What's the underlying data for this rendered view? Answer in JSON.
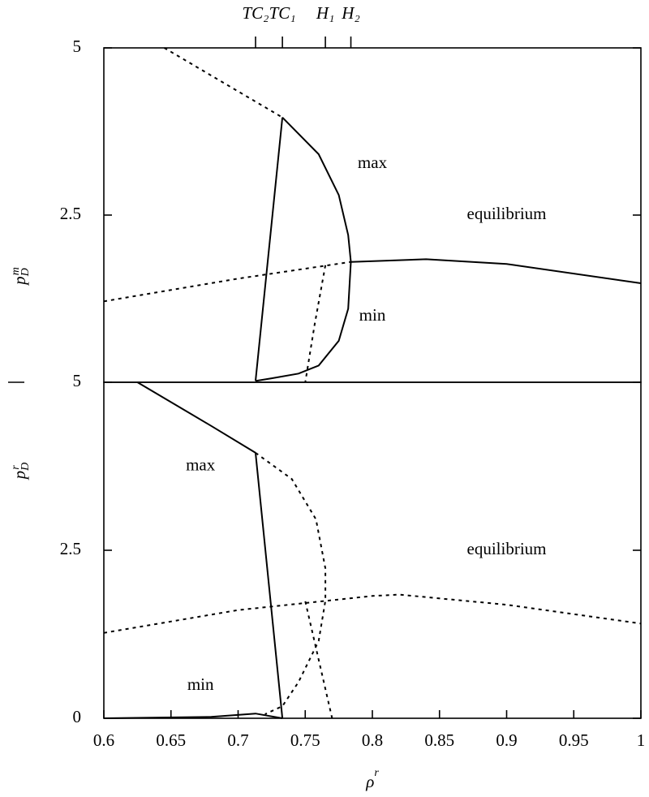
{
  "chart_data": [
    {
      "type": "line",
      "ylabel": {
        "base": "p",
        "sub": "D",
        "sup": "m"
      },
      "xlim": [
        0.6,
        1
      ],
      "ylim": [
        0,
        5
      ],
      "yticks": [
        2.5,
        5
      ],
      "x2ticks": [
        {
          "value": 0.713,
          "label": "TC₂"
        },
        {
          "value": 0.733,
          "label": "TC₁"
        },
        {
          "value": 0.765,
          "label": "H₁"
        },
        {
          "value": 0.784,
          "label": "H₂"
        }
      ],
      "annotations": [
        "max",
        "min",
        "equilibrium"
      ],
      "series": [
        {
          "color": "#000000",
          "dashed": true,
          "x": [
            0.645,
            0.733
          ],
          "values": [
            5,
            3.96
          ]
        },
        {
          "color": "#000000",
          "dashed": false,
          "x": [
            0.733,
            0.76,
            0.775,
            0.782,
            0.784,
            0.782,
            0.775,
            0.76,
            0.745,
            0.725,
            0.713
          ],
          "values": [
            3.96,
            3.41,
            2.8,
            2.2,
            1.8,
            1.1,
            0.62,
            0.25,
            0.13,
            0.06,
            0.02
          ]
        },
        {
          "color": "#000000",
          "dashed": false,
          "x": [
            0.713,
            0.733
          ],
          "values": [
            0.02,
            3.96
          ]
        },
        {
          "color": "#000000",
          "dashed": true,
          "x": [
            0.6,
            0.7,
            0.784
          ],
          "values": [
            1.21,
            1.55,
            1.8
          ]
        },
        {
          "color": "#000000",
          "dashed": false,
          "x": [
            0.784,
            0.84,
            0.9,
            1.0
          ],
          "values": [
            1.8,
            1.84,
            1.77,
            1.48
          ]
        },
        {
          "color": "#000000",
          "dashed": true,
          "x": [
            0.765,
            0.757,
            0.75
          ],
          "values": [
            1.75,
            0.86,
            0
          ]
        }
      ]
    },
    {
      "type": "line",
      "ylabel": {
        "base": "p",
        "sub": "D",
        "sup": "r"
      },
      "xlabel": {
        "base": "ρ",
        "sup": "r"
      },
      "xlim": [
        0.6,
        1
      ],
      "ylim": [
        0,
        5
      ],
      "yticks": [
        0,
        2.5,
        5
      ],
      "xticks": [
        0.6,
        0.65,
        0.7,
        0.75,
        0.8,
        0.85,
        0.9,
        0.95,
        1
      ],
      "annotations": [
        "max",
        "min",
        "equilibrium"
      ],
      "series": [
        {
          "color": "#000000",
          "dashed": false,
          "x": [
            0.625,
            0.68,
            0.713
          ],
          "values": [
            5,
            4.35,
            3.95
          ]
        },
        {
          "color": "#000000",
          "dashed": false,
          "x": [
            0.713,
            0.733
          ],
          "values": [
            3.95,
            0
          ]
        },
        {
          "color": "#000000",
          "dashed": true,
          "x": [
            0.713,
            0.74,
            0.758,
            0.765,
            0.765,
            0.76,
            0.745,
            0.733,
            0.72
          ],
          "values": [
            3.95,
            3.56,
            2.96,
            2.23,
            1.75,
            1.15,
            0.54,
            0.18,
            0.06
          ]
        },
        {
          "color": "#000000",
          "dashed": true,
          "x": [
            0.6,
            0.7,
            0.8,
            0.82,
            0.9,
            1.0
          ],
          "values": [
            1.27,
            1.61,
            1.82,
            1.84,
            1.69,
            1.41
          ]
        },
        {
          "color": "#000000",
          "dashed": true,
          "x": [
            0.75,
            0.77
          ],
          "values": [
            1.74,
            0
          ]
        },
        {
          "color": "#000000",
          "dashed": false,
          "x": [
            0.6,
            0.68,
            0.713,
            0.733
          ],
          "values": [
            0,
            0.02,
            0.07,
            0
          ]
        }
      ]
    }
  ]
}
